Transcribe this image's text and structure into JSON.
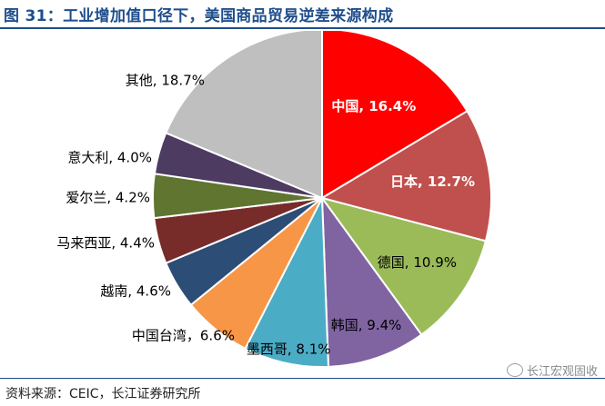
{
  "title": "图 31：工业增加值口径下，美国商品贸易逆差来源构成",
  "source": "资料来源：CEIC，长江证券研究所",
  "watermark": "长江宏观固收",
  "chart_data": {
    "type": "pie",
    "title": "",
    "start_angle": "12 o'clock, clockwise",
    "slices": [
      {
        "name": "中国",
        "value": 16.4,
        "label": "中国, 16.4%",
        "color": "#ff0000"
      },
      {
        "name": "日本",
        "value": 12.7,
        "label": "日本, 12.7%",
        "color": "#c0504d"
      },
      {
        "name": "德国",
        "value": 10.9,
        "label": "德国, 10.9%",
        "color": "#9bbb59"
      },
      {
        "name": "韩国",
        "value": 9.4,
        "label": "韩国, 9.4%",
        "color": "#8064a2"
      },
      {
        "name": "墨西哥",
        "value": 8.1,
        "label": "墨西哥, 8.1%",
        "color": "#4bacc6"
      },
      {
        "name": "中国台湾",
        "value": 6.6,
        "label": "中国台湾，6.6%",
        "color": "#f79646"
      },
      {
        "name": "越南",
        "value": 4.6,
        "label": "越南, 4.6%",
        "color": "#2c4d75"
      },
      {
        "name": "马来西亚",
        "value": 4.4,
        "label": "马来西亚, 4.4%",
        "color": "#772c2a"
      },
      {
        "name": "爱尔兰",
        "value": 4.2,
        "label": "爱尔兰, 4.2%",
        "color": "#5f7530"
      },
      {
        "name": "意大利",
        "value": 4.0,
        "label": "意大利, 4.0%",
        "color": "#4d3b62"
      },
      {
        "name": "其他",
        "value": 18.7,
        "label": "其他, 18.7%",
        "color": "#bfbfbf"
      }
    ]
  }
}
